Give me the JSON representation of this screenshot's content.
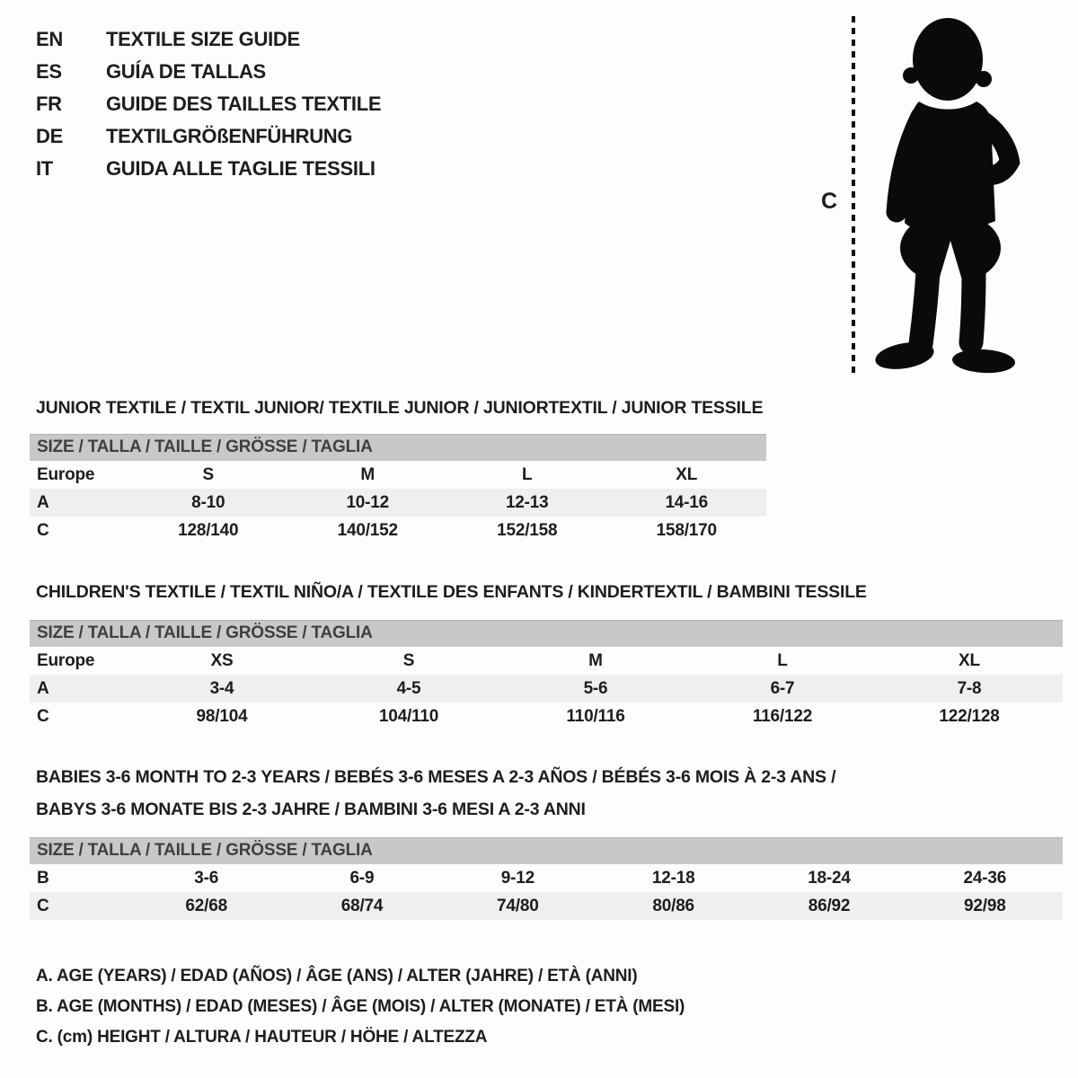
{
  "colors": {
    "bar_bg": "#c8c8c8",
    "row_shade": "#efefef",
    "ink": "#1d1d1d",
    "bar_ink": "#3f3f3f",
    "sil": "#0a0a0a"
  },
  "header": {
    "languages": [
      {
        "code": "EN",
        "title": "TEXTILE SIZE GUIDE"
      },
      {
        "code": "ES",
        "title": "GUÍA DE TALLAS"
      },
      {
        "code": "FR",
        "title": "GUIDE DES TAILLES TEXTILE"
      },
      {
        "code": "DE",
        "title": "TEXTILGRÖßENFÜHRUNG"
      },
      {
        "code": "IT",
        "title": "GUIDA ALLE TAGLIE TESSILI"
      }
    ]
  },
  "figure": {
    "height_label": "C"
  },
  "sections": [
    {
      "title": "JUNIOR TEXTILE / TEXTIL JUNIOR/ TEXTILE JUNIOR / JUNIORTEXTIL / JUNIOR TESSILE",
      "size_header": "SIZE / TALLA / TAILLE / GRÖSSE / TAGLIA",
      "rows": [
        {
          "label": "Europe",
          "shaded": false,
          "values": [
            "S",
            "M",
            "L",
            "XL"
          ]
        },
        {
          "label": "A",
          "shaded": true,
          "values": [
            "8-10",
            "10-12",
            "12-13",
            "14-16"
          ]
        },
        {
          "label": "C",
          "shaded": false,
          "values": [
            "128/140",
            "140/152",
            "152/158",
            "158/170"
          ]
        }
      ]
    },
    {
      "title": "CHILDREN'S TEXTILE / TEXTIL NIÑO/A / TEXTILE DES ENFANTS / KINDERTEXTIL / BAMBINI TESSILE",
      "size_header": "SIZE / TALLA / TAILLE / GRÖSSE / TAGLIA",
      "rows": [
        {
          "label": "Europe",
          "shaded": false,
          "values": [
            "XS",
            "S",
            "M",
            "L",
            "XL"
          ]
        },
        {
          "label": "A",
          "shaded": true,
          "values": [
            "3-4",
            "4-5",
            "5-6",
            "6-7",
            "7-8"
          ]
        },
        {
          "label": "C",
          "shaded": false,
          "values": [
            "98/104",
            "104/110",
            "110/116",
            "116/122",
            "122/128"
          ]
        }
      ]
    },
    {
      "title": "BABIES 3-6 MONTH TO 2-3 YEARS / BEBÉS 3-6 MESES A 2-3 AÑOS / BÉBÉS 3-6 MOIS À 2-3 ANS /",
      "title2": "BABYS 3-6 MONATE BIS 2-3 JAHRE / BAMBINI 3-6 MESI A 2-3 ANNI",
      "size_header": "SIZE / TALLA / TAILLE / GRÖSSE / TAGLIA",
      "rows": [
        {
          "label": "B",
          "shaded": false,
          "values": [
            "3-6",
            "6-9",
            "9-12",
            "12-18",
            "18-24",
            "24-36"
          ]
        },
        {
          "label": "C",
          "shaded": true,
          "values": [
            "62/68",
            "68/74",
            "74/80",
            "80/86",
            "86/92",
            "92/98"
          ]
        }
      ]
    }
  ],
  "legend": [
    "A. AGE (YEARS) / EDAD (AÑOS) / ÂGE (ANS) / ALTER (JAHRE) / ETÀ (ANNI)",
    "B. AGE (MONTHS) / EDAD (MESES) / ÂGE (MOIS) / ALTER (MONATE) / ETÀ (MESI)",
    "C. (cm) HEIGHT / ALTURA / HAUTEUR / HÖHE / ALTEZZA"
  ]
}
